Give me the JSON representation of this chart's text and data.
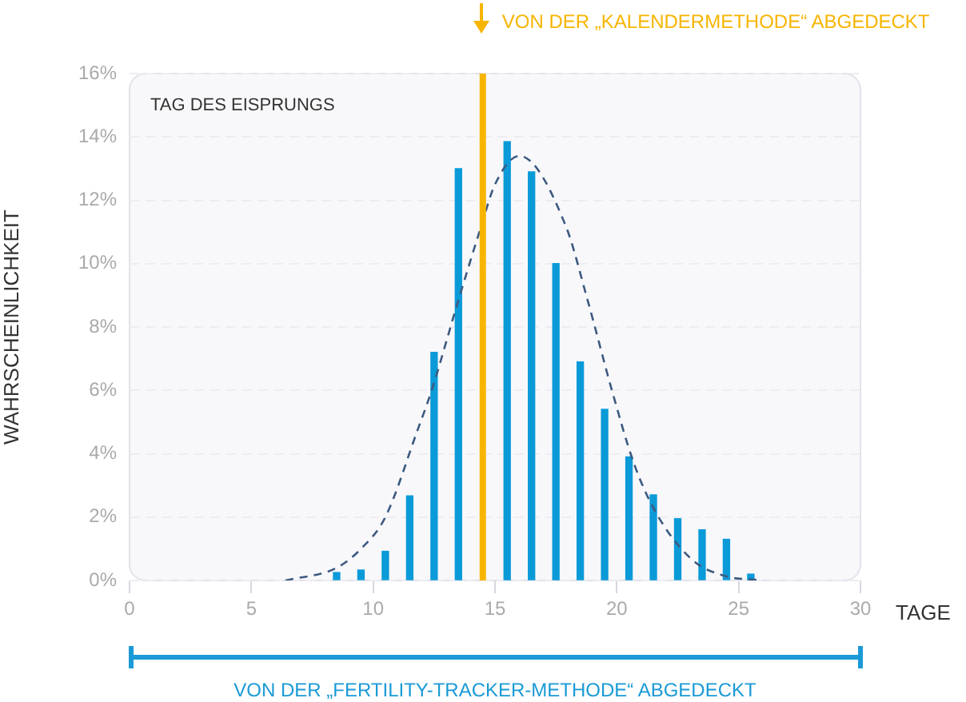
{
  "chart_data": {
    "type": "bar",
    "xlabel": "TAGE",
    "ylabel": "WAHRSCHEINLICHKEIT",
    "annotations": [
      "TAG DES EISPRUNGS",
      "VON DER „FERTILITY-TRACKER-METHODE“ ABGEDECKT"
    ],
    "x": [
      8.5,
      9.5,
      10.5,
      11.5,
      12.5,
      13.5,
      15.5,
      16.5,
      17.5,
      18.5,
      19.5,
      20.5,
      21.5,
      22.5,
      23.5,
      24.5,
      25.5
    ],
    "series": [
      {
        "color": "#0a9ad8",
        "values": [
          0.25,
          0.33,
          0.92,
          2.67,
          7.2,
          13.0,
          13.85,
          12.9,
          10.0,
          6.9,
          5.4,
          3.9,
          2.7,
          1.95,
          1.6,
          1.3,
          0.2
        ]
      },
      {
        "type": "line",
        "color": "#3d5a80",
        "line_style": "dashed",
        "marker": "none",
        "x": [
          6.4,
          8.5,
          9.5,
          10.5,
          11.8,
          12.4,
          13.5,
          14.4,
          15,
          16,
          17.9,
          18.8,
          19.8,
          20.7,
          21.6,
          23.1,
          24.4,
          26
        ],
        "values": [
          0,
          0.4,
          1.0,
          2.0,
          4.7,
          6.0,
          8.85,
          11.1,
          12.5,
          13.4,
          11.2,
          8.85,
          6.0,
          3.7,
          2.15,
          0.65,
          0.15,
          0
        ]
      }
    ],
    "xlim": [
      0,
      30
    ],
    "xticks": [
      0,
      5,
      10,
      15,
      20,
      25,
      30
    ],
    "ylim": [
      0,
      16
    ],
    "yticks": [
      {
        "value": 0,
        "label": "0%"
      },
      {
        "value": 2,
        "label": "2%"
      },
      {
        "value": 4,
        "label": "4%"
      },
      {
        "value": 6,
        "label": "6%"
      },
      {
        "value": 8,
        "label": "8%"
      },
      {
        "value": 10,
        "label": "10%"
      },
      {
        "value": 12,
        "label": "12%"
      },
      {
        "value": 14,
        "label": "14%"
      },
      {
        "value": 16,
        "label": "16%"
      }
    ],
    "grid": "y",
    "ref_lines": [
      {
        "axis": "x",
        "value": 14.5,
        "label": "VON DER „KALENDERMETHODE“ ABGEDECKT",
        "color": "#f7b500"
      }
    ]
  }
}
